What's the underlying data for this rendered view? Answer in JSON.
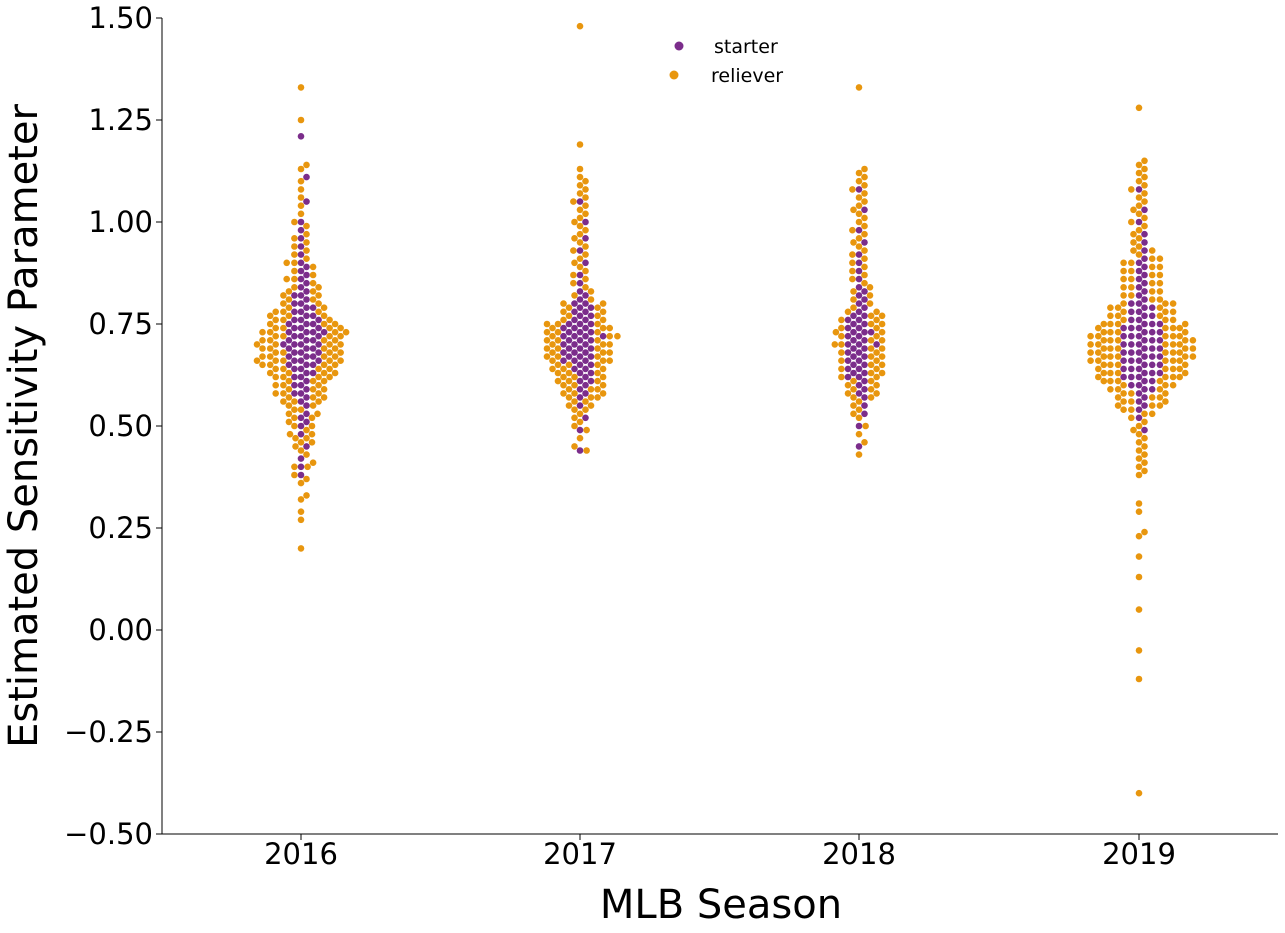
{
  "chart_data": {
    "type": "scatter",
    "subtype": "swarm",
    "title": "",
    "xlabel": "MLB Season",
    "ylabel": "Estimated Sensitivity Parameter",
    "categories": [
      "2016",
      "2017",
      "2018",
      "2019"
    ],
    "ylim": [
      -0.5,
      1.5
    ],
    "yticks": [
      -0.5,
      -0.25,
      0.0,
      0.25,
      0.5,
      0.75,
      1.0,
      1.25,
      1.5
    ],
    "ytick_labels": [
      "−0.50",
      "−0.25",
      "0.00",
      "0.25",
      "0.50",
      "0.75",
      "1.00",
      "1.25",
      "1.50"
    ],
    "grid": false,
    "legend": {
      "position": "top-center"
    },
    "series": [
      {
        "name": "starter",
        "color": "#7b2d8b",
        "values": [
          [
            0.38,
            0.4,
            0.42,
            0.45,
            0.48,
            0.5,
            0.51,
            0.52,
            0.53,
            0.55,
            0.56,
            0.57,
            0.58,
            0.58,
            0.59,
            0.6,
            0.6,
            0.61,
            0.62,
            0.62,
            0.63,
            0.63,
            0.64,
            0.64,
            0.65,
            0.65,
            0.65,
            0.66,
            0.66,
            0.66,
            0.67,
            0.67,
            0.67,
            0.68,
            0.68,
            0.68,
            0.69,
            0.69,
            0.69,
            0.7,
            0.7,
            0.7,
            0.7,
            0.71,
            0.71,
            0.71,
            0.72,
            0.72,
            0.72,
            0.73,
            0.73,
            0.73,
            0.73,
            0.74,
            0.74,
            0.74,
            0.75,
            0.75,
            0.75,
            0.76,
            0.76,
            0.76,
            0.77,
            0.77,
            0.78,
            0.78,
            0.79,
            0.79,
            0.8,
            0.8,
            0.81,
            0.82,
            0.82,
            0.83,
            0.84,
            0.85,
            0.86,
            0.87,
            0.88,
            0.89,
            0.9,
            0.92,
            0.94,
            0.96,
            0.98,
            1.0,
            1.05,
            1.11,
            1.21
          ],
          [
            0.44,
            0.49,
            0.52,
            0.55,
            0.57,
            0.58,
            0.59,
            0.6,
            0.61,
            0.61,
            0.62,
            0.63,
            0.63,
            0.64,
            0.64,
            0.65,
            0.65,
            0.66,
            0.66,
            0.66,
            0.67,
            0.67,
            0.67,
            0.68,
            0.68,
            0.68,
            0.69,
            0.69,
            0.69,
            0.7,
            0.7,
            0.7,
            0.71,
            0.71,
            0.71,
            0.72,
            0.72,
            0.72,
            0.72,
            0.73,
            0.73,
            0.73,
            0.74,
            0.74,
            0.74,
            0.75,
            0.75,
            0.75,
            0.76,
            0.76,
            0.77,
            0.77,
            0.78,
            0.78,
            0.79,
            0.79,
            0.8,
            0.8,
            0.81,
            0.82,
            0.83,
            0.85,
            0.87,
            0.9,
            0.93,
            0.96,
            1.0,
            1.05
          ],
          [
            0.45,
            0.5,
            0.53,
            0.55,
            0.57,
            0.58,
            0.59,
            0.6,
            0.61,
            0.62,
            0.62,
            0.63,
            0.63,
            0.64,
            0.64,
            0.65,
            0.65,
            0.66,
            0.66,
            0.67,
            0.67,
            0.68,
            0.68,
            0.69,
            0.69,
            0.7,
            0.7,
            0.7,
            0.71,
            0.71,
            0.72,
            0.72,
            0.73,
            0.73,
            0.73,
            0.74,
            0.74,
            0.75,
            0.75,
            0.76,
            0.76,
            0.77,
            0.77,
            0.78,
            0.79,
            0.8,
            0.81,
            0.82,
            0.83,
            0.84,
            0.86,
            0.88,
            0.9,
            0.92,
            0.95,
            0.98,
            1.03,
            1.08
          ],
          [
            0.49,
            0.52,
            0.54,
            0.55,
            0.56,
            0.57,
            0.58,
            0.59,
            0.59,
            0.6,
            0.6,
            0.61,
            0.61,
            0.62,
            0.62,
            0.62,
            0.63,
            0.63,
            0.63,
            0.64,
            0.64,
            0.64,
            0.65,
            0.65,
            0.65,
            0.66,
            0.66,
            0.66,
            0.67,
            0.67,
            0.67,
            0.68,
            0.68,
            0.68,
            0.69,
            0.69,
            0.69,
            0.7,
            0.7,
            0.7,
            0.71,
            0.71,
            0.71,
            0.72,
            0.72,
            0.72,
            0.73,
            0.73,
            0.73,
            0.74,
            0.74,
            0.74,
            0.75,
            0.75,
            0.75,
            0.76,
            0.76,
            0.77,
            0.77,
            0.78,
            0.78,
            0.79,
            0.79,
            0.8,
            0.8,
            0.81,
            0.82,
            0.83,
            0.84,
            0.85,
            0.86,
            0.87,
            0.88,
            0.89,
            0.9,
            0.91,
            0.93,
            0.95,
            0.97,
            1.0,
            1.03,
            1.08
          ]
        ]
      },
      {
        "name": "reliever",
        "color": "#e8960e",
        "values": [
          [
            0.2,
            0.27,
            0.29,
            0.32,
            0.33,
            0.36,
            0.37,
            0.38,
            0.4,
            0.4,
            0.41,
            0.43,
            0.44,
            0.45,
            0.46,
            0.46,
            0.47,
            0.47,
            0.48,
            0.48,
            0.49,
            0.5,
            0.5,
            0.51,
            0.52,
            0.52,
            0.53,
            0.53,
            0.54,
            0.54,
            0.55,
            0.55,
            0.56,
            0.56,
            0.56,
            0.57,
            0.57,
            0.57,
            0.58,
            0.58,
            0.58,
            0.59,
            0.59,
            0.59,
            0.6,
            0.6,
            0.6,
            0.61,
            0.61,
            0.61,
            0.62,
            0.62,
            0.62,
            0.62,
            0.63,
            0.63,
            0.63,
            0.63,
            0.64,
            0.64,
            0.64,
            0.64,
            0.65,
            0.65,
            0.65,
            0.65,
            0.66,
            0.66,
            0.66,
            0.66,
            0.66,
            0.67,
            0.67,
            0.67,
            0.67,
            0.68,
            0.68,
            0.68,
            0.68,
            0.69,
            0.69,
            0.69,
            0.69,
            0.7,
            0.7,
            0.7,
            0.7,
            0.71,
            0.71,
            0.71,
            0.71,
            0.72,
            0.72,
            0.72,
            0.72,
            0.73,
            0.73,
            0.73,
            0.73,
            0.74,
            0.74,
            0.74,
            0.74,
            0.75,
            0.75,
            0.75,
            0.76,
            0.76,
            0.76,
            0.77,
            0.77,
            0.77,
            0.78,
            0.78,
            0.78,
            0.79,
            0.79,
            0.8,
            0.8,
            0.81,
            0.81,
            0.82,
            0.82,
            0.83,
            0.83,
            0.84,
            0.84,
            0.85,
            0.86,
            0.86,
            0.87,
            0.88,
            0.89,
            0.9,
            0.9,
            0.91,
            0.92,
            0.93,
            0.94,
            0.95,
            0.96,
            0.97,
            0.99,
            1.0,
            1.02,
            1.04,
            1.06,
            1.08,
            1.1,
            1.13,
            1.14,
            1.25,
            1.33
          ],
          [
            0.44,
            0.45,
            0.47,
            0.49,
            0.5,
            0.51,
            0.52,
            0.53,
            0.54,
            0.54,
            0.55,
            0.55,
            0.56,
            0.56,
            0.57,
            0.57,
            0.57,
            0.58,
            0.58,
            0.58,
            0.59,
            0.59,
            0.59,
            0.6,
            0.6,
            0.6,
            0.61,
            0.61,
            0.61,
            0.62,
            0.62,
            0.62,
            0.63,
            0.63,
            0.63,
            0.64,
            0.64,
            0.64,
            0.65,
            0.65,
            0.65,
            0.66,
            0.66,
            0.66,
            0.67,
            0.67,
            0.67,
            0.68,
            0.68,
            0.68,
            0.69,
            0.69,
            0.69,
            0.7,
            0.7,
            0.7,
            0.71,
            0.71,
            0.71,
            0.72,
            0.72,
            0.72,
            0.73,
            0.73,
            0.73,
            0.74,
            0.74,
            0.74,
            0.75,
            0.75,
            0.75,
            0.76,
            0.76,
            0.77,
            0.77,
            0.78,
            0.78,
            0.79,
            0.79,
            0.8,
            0.8,
            0.81,
            0.82,
            0.83,
            0.84,
            0.85,
            0.86,
            0.87,
            0.88,
            0.89,
            0.9,
            0.91,
            0.92,
            0.93,
            0.94,
            0.95,
            0.96,
            0.97,
            0.98,
            0.99,
            1.0,
            1.01,
            1.02,
            1.03,
            1.04,
            1.05,
            1.06,
            1.07,
            1.08,
            1.09,
            1.1,
            1.11,
            1.13,
            1.19,
            1.48
          ],
          [
            0.43,
            0.46,
            0.48,
            0.5,
            0.52,
            0.53,
            0.54,
            0.55,
            0.56,
            0.57,
            0.57,
            0.58,
            0.58,
            0.59,
            0.59,
            0.6,
            0.6,
            0.61,
            0.61,
            0.62,
            0.62,
            0.63,
            0.63,
            0.64,
            0.64,
            0.65,
            0.65,
            0.66,
            0.66,
            0.67,
            0.67,
            0.68,
            0.68,
            0.69,
            0.69,
            0.7,
            0.7,
            0.71,
            0.71,
            0.72,
            0.72,
            0.73,
            0.73,
            0.74,
            0.74,
            0.75,
            0.75,
            0.76,
            0.76,
            0.77,
            0.77,
            0.78,
            0.78,
            0.79,
            0.8,
            0.81,
            0.82,
            0.83,
            0.84,
            0.85,
            0.86,
            0.87,
            0.88,
            0.89,
            0.9,
            0.91,
            0.92,
            0.93,
            0.94,
            0.95,
            0.96,
            0.97,
            0.98,
            0.99,
            1.0,
            1.01,
            1.02,
            1.03,
            1.04,
            1.05,
            1.06,
            1.07,
            1.08,
            1.09,
            1.1,
            1.11,
            1.12,
            1.13,
            1.33
          ],
          [
            -0.4,
            -0.12,
            -0.05,
            0.05,
            0.13,
            0.18,
            0.23,
            0.24,
            0.29,
            0.31,
            0.38,
            0.39,
            0.4,
            0.41,
            0.42,
            0.43,
            0.44,
            0.45,
            0.46,
            0.47,
            0.48,
            0.49,
            0.5,
            0.51,
            0.52,
            0.53,
            0.53,
            0.54,
            0.54,
            0.55,
            0.55,
            0.55,
            0.56,
            0.56,
            0.56,
            0.57,
            0.57,
            0.57,
            0.58,
            0.58,
            0.58,
            0.59,
            0.59,
            0.59,
            0.6,
            0.6,
            0.6,
            0.61,
            0.61,
            0.61,
            0.61,
            0.62,
            0.62,
            0.62,
            0.62,
            0.63,
            0.63,
            0.63,
            0.63,
            0.64,
            0.64,
            0.64,
            0.64,
            0.65,
            0.65,
            0.65,
            0.65,
            0.66,
            0.66,
            0.66,
            0.66,
            0.66,
            0.67,
            0.67,
            0.67,
            0.67,
            0.67,
            0.68,
            0.68,
            0.68,
            0.68,
            0.68,
            0.69,
            0.69,
            0.69,
            0.69,
            0.69,
            0.7,
            0.7,
            0.7,
            0.7,
            0.7,
            0.71,
            0.71,
            0.71,
            0.71,
            0.71,
            0.72,
            0.72,
            0.72,
            0.72,
            0.72,
            0.73,
            0.73,
            0.73,
            0.73,
            0.74,
            0.74,
            0.74,
            0.74,
            0.75,
            0.75,
            0.75,
            0.75,
            0.76,
            0.76,
            0.76,
            0.77,
            0.77,
            0.77,
            0.78,
            0.78,
            0.78,
            0.79,
            0.79,
            0.79,
            0.8,
            0.8,
            0.8,
            0.81,
            0.81,
            0.82,
            0.82,
            0.83,
            0.83,
            0.84,
            0.84,
            0.85,
            0.85,
            0.86,
            0.86,
            0.87,
            0.87,
            0.88,
            0.88,
            0.89,
            0.89,
            0.9,
            0.9,
            0.91,
            0.91,
            0.92,
            0.93,
            0.93,
            0.94,
            0.95,
            0.96,
            0.97,
            0.98,
            0.99,
            1.0,
            1.01,
            1.02,
            1.03,
            1.04,
            1.05,
            1.06,
            1.07,
            1.08,
            1.09,
            1.1,
            1.11,
            1.12,
            1.13,
            1.14,
            1.15,
            1.28
          ]
        ]
      }
    ]
  }
}
